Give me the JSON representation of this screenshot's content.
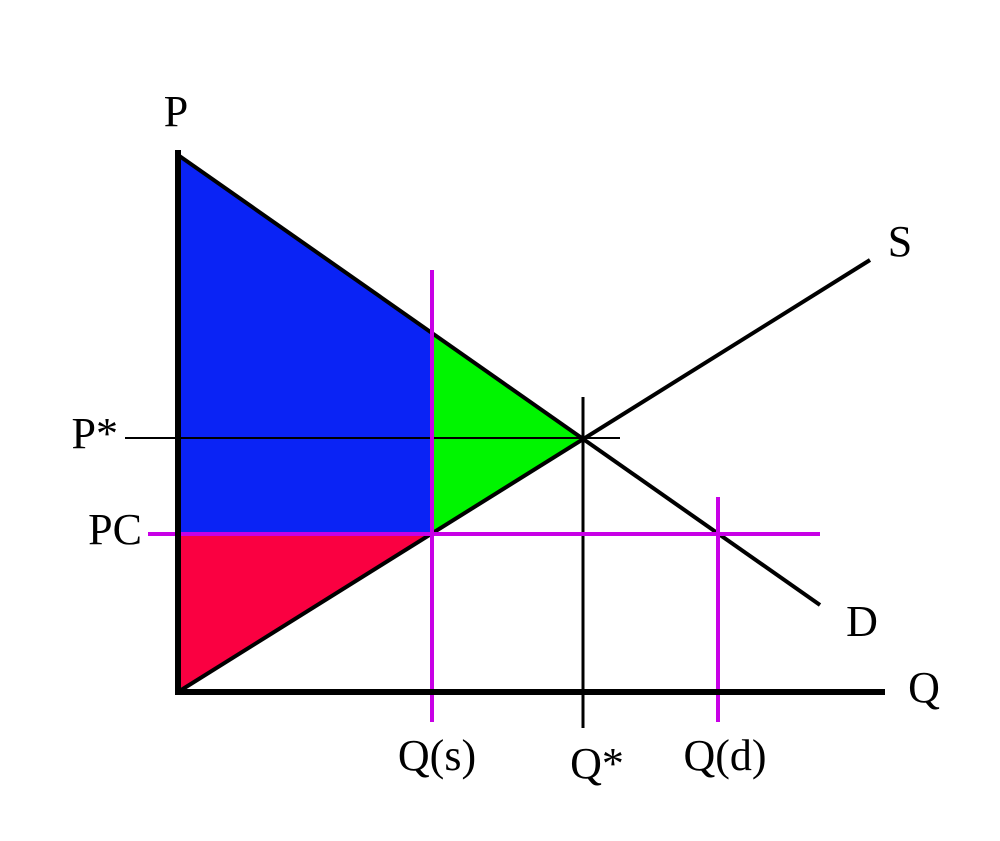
{
  "axes": {
    "y_label": "P",
    "x_label": "Q"
  },
  "curves": {
    "supply": "S",
    "demand": "D"
  },
  "price_labels": {
    "equilibrium": "P*",
    "ceiling": "PC"
  },
  "quantity_labels": {
    "supplied": "Q(s)",
    "equilibrium": "Q*",
    "demanded": "Q(d)"
  }
}
